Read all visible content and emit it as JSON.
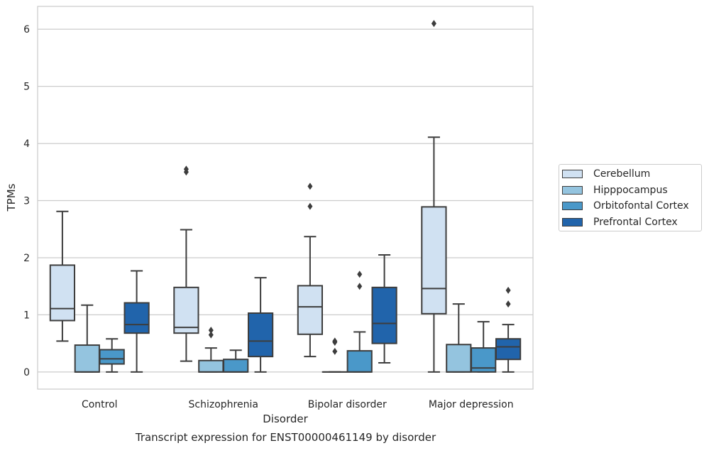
{
  "chart_data": {
    "type": "box",
    "title": "",
    "xlabel": "Disorder",
    "ylabel": "TPMs",
    "caption": "Transcript expression for ENST00000461149 by disorder",
    "ylim": [
      -0.3,
      6.4
    ],
    "yticks": [
      "0",
      "1",
      "2",
      "3",
      "4",
      "5",
      "6"
    ],
    "grid": "y-axis",
    "legend_position": "right",
    "categories": [
      "Control",
      "Schizophrenia",
      "Bipolar disorder",
      "Major depression"
    ],
    "series": [
      {
        "name": "Cerebellum",
        "color": "#d0e1f2",
        "boxes": [
          {
            "whislo": 0.54,
            "q1": 0.9,
            "med": 1.11,
            "q3": 1.87,
            "whishi": 2.81,
            "fliers": []
          },
          {
            "whislo": 0.19,
            "q1": 0.68,
            "med": 0.78,
            "q3": 1.48,
            "whishi": 2.49,
            "fliers": [
              3.5,
              3.55
            ]
          },
          {
            "whislo": 0.27,
            "q1": 0.66,
            "med": 1.14,
            "q3": 1.51,
            "whishi": 2.37,
            "fliers": [
              2.9,
              3.25
            ]
          },
          {
            "whislo": 0.0,
            "q1": 1.02,
            "med": 1.46,
            "q3": 2.89,
            "whishi": 4.11,
            "fliers": [
              6.1
            ]
          }
        ]
      },
      {
        "name": "Hipppocampus",
        "color": "#94c4df",
        "boxes": [
          {
            "whislo": 0.0,
            "q1": 0.0,
            "med": 0.0,
            "q3": 0.47,
            "whishi": 1.17,
            "fliers": []
          },
          {
            "whislo": 0.0,
            "q1": 0.0,
            "med": 0.0,
            "q3": 0.2,
            "whishi": 0.42,
            "fliers": [
              0.65,
              0.73
            ]
          },
          {
            "whislo": 0.0,
            "q1": 0.0,
            "med": 0.0,
            "q3": 0.0,
            "whishi": 0.0,
            "fliers": [
              0.36,
              0.52,
              0.54
            ]
          },
          {
            "whislo": 0.0,
            "q1": 0.0,
            "med": 0.0,
            "q3": 0.48,
            "whishi": 1.19,
            "fliers": []
          }
        ]
      },
      {
        "name": "Orbitofontal Cortex",
        "color": "#4a98c9",
        "boxes": [
          {
            "whislo": 0.0,
            "q1": 0.14,
            "med": 0.23,
            "q3": 0.39,
            "whishi": 0.58,
            "fliers": []
          },
          {
            "whislo": 0.0,
            "q1": 0.0,
            "med": 0.0,
            "q3": 0.22,
            "whishi": 0.38,
            "fliers": []
          },
          {
            "whislo": 0.0,
            "q1": 0.0,
            "med": 0.0,
            "q3": 0.37,
            "whishi": 0.7,
            "fliers": [
              1.5,
              1.71
            ]
          },
          {
            "whislo": 0.0,
            "q1": 0.0,
            "med": 0.07,
            "q3": 0.42,
            "whishi": 0.88,
            "fliers": []
          }
        ]
      },
      {
        "name": "Prefrontal Cortex",
        "color": "#2164ab",
        "boxes": [
          {
            "whislo": 0.0,
            "q1": 0.68,
            "med": 0.83,
            "q3": 1.21,
            "whishi": 1.77,
            "fliers": []
          },
          {
            "whislo": 0.0,
            "q1": 0.27,
            "med": 0.54,
            "q3": 1.03,
            "whishi": 1.65,
            "fliers": []
          },
          {
            "whislo": 0.16,
            "q1": 0.5,
            "med": 0.85,
            "q3": 1.48,
            "whishi": 2.05,
            "fliers": []
          },
          {
            "whislo": 0.0,
            "q1": 0.22,
            "med": 0.44,
            "q3": 0.58,
            "whishi": 0.83,
            "fliers": [
              1.19,
              1.43
            ]
          }
        ]
      }
    ]
  }
}
